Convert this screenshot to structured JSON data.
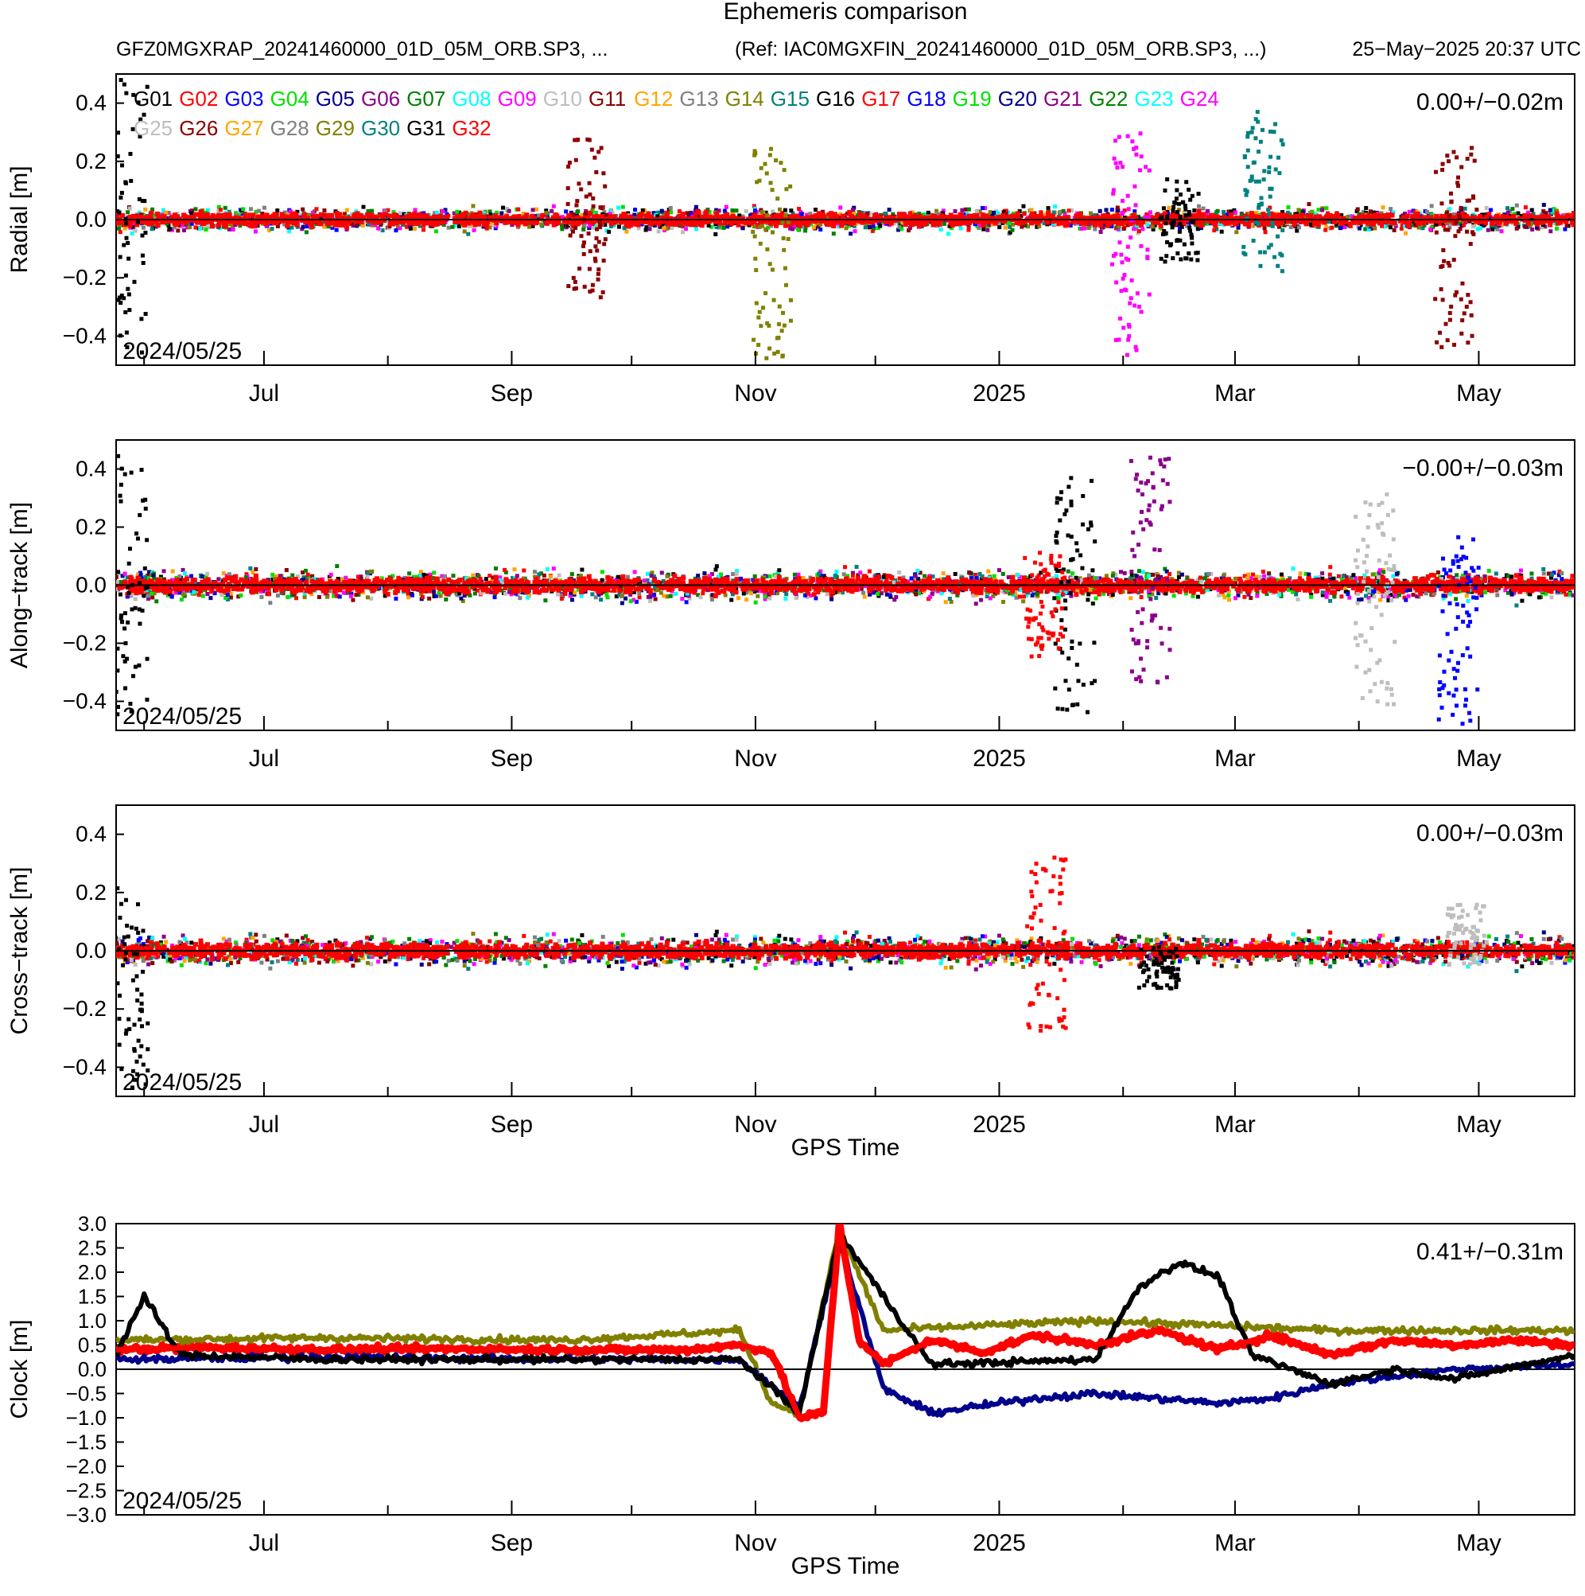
{
  "header": {
    "title": "Ephemeris comparison",
    "file": "GFZ0MGXRAP_20241460000_01D_05M_ORB.SP3, ...",
    "ref": "(Ref: IAC0MGXFIN_20241460000_01D_05M_ORB.SP3, ...)",
    "timestamp": "25−May−2025 20:37 UTC"
  },
  "legend": {
    "entries": [
      {
        "name": "G01",
        "color": "#000000"
      },
      {
        "name": "G02",
        "color": "#ff0000"
      },
      {
        "name": "G03",
        "color": "#0000ff"
      },
      {
        "name": "G04",
        "color": "#00e000"
      },
      {
        "name": "G05",
        "color": "#00008b"
      },
      {
        "name": "G06",
        "color": "#8b008b"
      },
      {
        "name": "G07",
        "color": "#008000"
      },
      {
        "name": "G08",
        "color": "#00ffff"
      },
      {
        "name": "G09",
        "color": "#ff00ff"
      },
      {
        "name": "G10",
        "color": "#bebebe"
      },
      {
        "name": "G11",
        "color": "#8b0000"
      },
      {
        "name": "G12",
        "color": "#ffa500"
      },
      {
        "name": "G13",
        "color": "#808080"
      },
      {
        "name": "G14",
        "color": "#808000"
      },
      {
        "name": "G15",
        "color": "#008080"
      },
      {
        "name": "G16",
        "color": "#000000"
      },
      {
        "name": "G17",
        "color": "#ff0000"
      },
      {
        "name": "G18",
        "color": "#0000ff"
      },
      {
        "name": "G19",
        "color": "#00e000"
      },
      {
        "name": "G20",
        "color": "#00008b"
      },
      {
        "name": "G21",
        "color": "#8b008b"
      },
      {
        "name": "G22",
        "color": "#008000"
      },
      {
        "name": "G23",
        "color": "#00ffff"
      },
      {
        "name": "G24",
        "color": "#ff00ff"
      },
      {
        "name": "G25",
        "color": "#bebebe"
      },
      {
        "name": "G26",
        "color": "#8b0000"
      },
      {
        "name": "G27",
        "color": "#ffa500"
      },
      {
        "name": "G28",
        "color": "#808080"
      },
      {
        "name": "G29",
        "color": "#808000"
      },
      {
        "name": "G30",
        "color": "#008080"
      },
      {
        "name": "G31",
        "color": "#000000"
      },
      {
        "name": "G32",
        "color": "#ff0000"
      }
    ]
  },
  "chart_data": [
    {
      "type": "scatter",
      "ylabel": "Radial [m]",
      "xlabel": "",
      "ylim": [
        -0.5,
        0.5
      ],
      "yticks": [
        "−0.4",
        "−0.2",
        "0.0",
        "0.2",
        "0.4"
      ],
      "ytick_values": [
        -0.4,
        -0.2,
        0.0,
        0.2,
        0.4
      ],
      "xticks": [
        "Jul",
        "Sep",
        "Nov",
        "2025",
        "Mar",
        "May"
      ],
      "xtick_dates": [
        "2024-07-01",
        "2024-09-01",
        "2024-11-01",
        "2025-01-01",
        "2025-03-01",
        "2025-05-01"
      ],
      "xlim": [
        "2024-05-25",
        "2025-05-25"
      ],
      "start_label": "2024/05/25",
      "stat": "0.00+/−0.02m",
      "dominant_series": "G32",
      "typical_spread_m": 0.04,
      "highlights": [
        {
          "sat": "G01",
          "date": "2024-05-28",
          "min": -0.48,
          "max": 0.48
        },
        {
          "sat": "G14",
          "date": "2024-11-05",
          "min": -0.48,
          "max": 0.25
        },
        {
          "sat": "G09",
          "date": "2025-02-03",
          "min": -0.48,
          "max": 0.32
        },
        {
          "sat": "G16",
          "date": "2025-02-15",
          "min": -0.15,
          "max": 0.15
        },
        {
          "sat": "G26",
          "date": "2025-04-25",
          "min": -0.45,
          "max": 0.25
        },
        {
          "sat": "G15",
          "date": "2025-03-08",
          "min": -0.2,
          "max": 0.37
        },
        {
          "sat": "G11",
          "date": "2024-09-20",
          "min": -0.27,
          "max": 0.28
        }
      ]
    },
    {
      "type": "scatter",
      "ylabel": "Along−track [m]",
      "xlabel": "",
      "ylim": [
        -0.5,
        0.5
      ],
      "yticks": [
        "−0.4",
        "−0.2",
        "0.0",
        "0.2",
        "0.4"
      ],
      "ytick_values": [
        -0.4,
        -0.2,
        0.0,
        0.2,
        0.4
      ],
      "xticks": [
        "Jul",
        "Sep",
        "Nov",
        "2025",
        "Mar",
        "May"
      ],
      "xtick_dates": [
        "2024-07-01",
        "2024-09-01",
        "2024-11-01",
        "2025-01-01",
        "2025-03-01",
        "2025-05-01"
      ],
      "xlim": [
        "2024-05-25",
        "2025-05-25"
      ],
      "start_label": "2024/05/25",
      "stat": "−0.00+/−0.03m",
      "dominant_series": "G32",
      "typical_spread_m": 0.05,
      "highlights": [
        {
          "sat": "G01",
          "date": "2024-05-28",
          "min": -0.45,
          "max": 0.45
        },
        {
          "sat": "G16",
          "date": "2025-01-20",
          "min": -0.45,
          "max": 0.38
        },
        {
          "sat": "G02",
          "date": "2025-01-12",
          "min": -0.25,
          "max": 0.12
        },
        {
          "sat": "G06",
          "date": "2025-02-08",
          "min": -0.35,
          "max": 0.44
        },
        {
          "sat": "G25",
          "date": "2025-04-05",
          "min": -0.42,
          "max": 0.32
        },
        {
          "sat": "G03",
          "date": "2025-04-26",
          "min": -0.48,
          "max": 0.18
        }
      ]
    },
    {
      "type": "scatter",
      "ylabel": "Cross−track [m]",
      "xlabel": "GPS Time",
      "ylim": [
        -0.5,
        0.5
      ],
      "yticks": [
        "−0.4",
        "−0.2",
        "0.0",
        "0.2",
        "0.4"
      ],
      "ytick_values": [
        -0.4,
        -0.2,
        0.0,
        0.2,
        0.4
      ],
      "xticks": [
        "Jul",
        "Sep",
        "Nov",
        "2025",
        "Mar",
        "May"
      ],
      "xtick_dates": [
        "2024-07-01",
        "2024-09-01",
        "2024-11-01",
        "2025-01-01",
        "2025-03-01",
        "2025-05-01"
      ],
      "xlim": [
        "2024-05-25",
        "2025-05-25"
      ],
      "start_label": "2024/05/25",
      "stat": "0.00+/−0.03m",
      "dominant_series": "G32",
      "typical_spread_m": 0.05,
      "highlights": [
        {
          "sat": "G01",
          "date": "2024-05-28",
          "min": -0.48,
          "max": 0.22
        },
        {
          "sat": "G02",
          "date": "2025-01-13",
          "min": -0.28,
          "max": 0.32
        },
        {
          "sat": "G16",
          "date": "2025-02-10",
          "min": -0.13,
          "max": 0.02
        },
        {
          "sat": "G25",
          "date": "2025-04-28",
          "min": -0.05,
          "max": 0.16
        }
      ]
    },
    {
      "type": "line",
      "ylabel": "Clock [m]",
      "xlabel": "GPS Time",
      "ylim": [
        -3.0,
        3.0
      ],
      "yticks": [
        "−3.0",
        "−2.5",
        "−2.0",
        "−1.5",
        "−1.0",
        "−0.5",
        "0.0",
        "0.5",
        "1.0",
        "1.5",
        "2.0",
        "2.5",
        "3.0"
      ],
      "ytick_values": [
        -3.0,
        -2.5,
        -2.0,
        -1.5,
        -1.0,
        -0.5,
        0.0,
        0.5,
        1.0,
        1.5,
        2.0,
        2.5,
        3.0
      ],
      "xticks": [
        "Jul",
        "Sep",
        "Nov",
        "2025",
        "Mar",
        "May"
      ],
      "xtick_dates": [
        "2024-07-01",
        "2024-09-01",
        "2024-11-01",
        "2025-01-01",
        "2025-03-01",
        "2025-05-01"
      ],
      "xlim": [
        "2024-05-25",
        "2025-05-25"
      ],
      "start_label": "2024/05/25",
      "stat": "0.41+/−0.31m",
      "series": [
        {
          "name": "G32",
          "color": "#ff0000",
          "x": [
            "2024-05-25",
            "2024-06-15",
            "2024-07-15",
            "2024-08-15",
            "2024-09-15",
            "2024-10-15",
            "2024-10-28",
            "2024-11-05",
            "2024-11-12",
            "2024-11-18",
            "2024-11-22",
            "2024-11-27",
            "2024-12-03",
            "2024-12-15",
            "2024-12-28",
            "2025-01-10",
            "2025-01-25",
            "2025-02-10",
            "2025-02-25",
            "2025-03-10",
            "2025-03-25",
            "2025-04-10",
            "2025-04-25",
            "2025-05-10",
            "2025-05-25"
          ],
          "y": [
            0.4,
            0.45,
            0.4,
            0.42,
            0.4,
            0.4,
            0.5,
            0.35,
            -1.0,
            -0.9,
            3.0,
            0.6,
            0.1,
            0.6,
            0.35,
            0.7,
            0.5,
            0.8,
            0.4,
            0.7,
            0.3,
            0.6,
            0.5,
            0.6,
            0.5
          ]
        },
        {
          "name": "G29",
          "color": "#808000",
          "x": [
            "2024-05-25",
            "2024-07-15",
            "2024-09-15",
            "2024-10-28",
            "2024-11-05",
            "2024-11-12",
            "2024-11-22",
            "2024-12-03",
            "2024-12-28",
            "2025-01-25",
            "2025-02-25",
            "2025-03-25",
            "2025-04-25",
            "2025-05-25"
          ],
          "y": [
            0.6,
            0.65,
            0.6,
            0.8,
            -0.7,
            -0.9,
            2.9,
            0.8,
            0.9,
            1.0,
            0.9,
            0.8,
            0.8,
            0.8
          ]
        },
        {
          "name": "G05",
          "color": "#00008b",
          "x": [
            "2024-05-25",
            "2024-07-15",
            "2024-09-15",
            "2024-10-28",
            "2024-11-12",
            "2024-11-22",
            "2024-12-03",
            "2024-12-15",
            "2025-01-10",
            "2025-01-25",
            "2025-02-25",
            "2025-03-10",
            "2025-03-25",
            "2025-04-25",
            "2025-05-25"
          ],
          "y": [
            0.2,
            0.25,
            0.2,
            0.2,
            -0.8,
            2.7,
            -0.4,
            -0.9,
            -0.6,
            -0.5,
            -0.7,
            -0.6,
            -0.3,
            0.0,
            0.1
          ]
        },
        {
          "name": "G01",
          "color": "#000000",
          "x": [
            "2024-05-25",
            "2024-06-01",
            "2024-06-10",
            "2024-07-15",
            "2024-09-15",
            "2024-10-28",
            "2024-11-12",
            "2024-11-22",
            "2024-12-15",
            "2025-01-25",
            "2025-02-05",
            "2025-02-15",
            "2025-02-25",
            "2025-03-05",
            "2025-03-25",
            "2025-04-10",
            "2025-04-25",
            "2025-05-25"
          ],
          "y": [
            0.3,
            1.5,
            0.3,
            0.2,
            0.2,
            0.2,
            -0.9,
            2.8,
            0.1,
            0.2,
            1.7,
            2.2,
            1.9,
            0.3,
            -0.3,
            0.0,
            -0.2,
            0.3
          ]
        }
      ]
    }
  ]
}
